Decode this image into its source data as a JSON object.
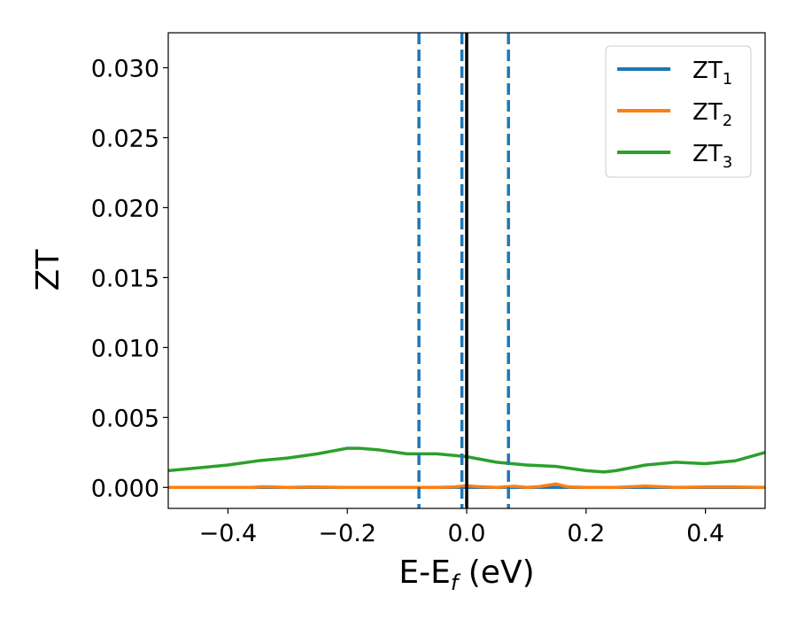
{
  "chart_data": {
    "type": "line",
    "xlabel": {
      "main": "E-E",
      "sub": "f",
      "suffix": " (eV)"
    },
    "ylabel": "ZT",
    "xlim": [
      -0.5,
      0.5
    ],
    "ylim": [
      -0.0015,
      0.0325
    ],
    "xticks": [
      -0.4,
      -0.2,
      0.0,
      0.2,
      0.4
    ],
    "xtick_labels": [
      "−0.4",
      "−0.2",
      "0.0",
      "0.2",
      "0.4"
    ],
    "yticks": [
      0.0,
      0.005,
      0.01,
      0.015,
      0.02,
      0.025,
      0.03
    ],
    "ytick_labels": [
      "0.000",
      "0.005",
      "0.010",
      "0.015",
      "0.020",
      "0.025",
      "0.030"
    ],
    "grid": false,
    "legend_position": "top-right",
    "series": [
      {
        "name": "ZT",
        "sub": "1",
        "color": "#1f77b4",
        "x": [
          -0.5,
          0.5
        ],
        "y": [
          0.0,
          0.0
        ]
      },
      {
        "name": "ZT",
        "sub": "2",
        "color": "#ff7f0e",
        "x": [
          -0.5,
          -0.45,
          -0.4,
          -0.36,
          -0.34,
          -0.3,
          -0.26,
          -0.2,
          -0.15,
          -0.1,
          -0.05,
          -0.02,
          0.0,
          0.02,
          0.05,
          0.08,
          0.1,
          0.12,
          0.15,
          0.17,
          0.2,
          0.25,
          0.3,
          0.35,
          0.4,
          0.45,
          0.5
        ],
        "y": [
          0.0,
          0.0,
          0.0,
          0.0,
          5e-05,
          0.0,
          3e-05,
          0.0,
          0.0,
          0.0,
          0.0,
          3e-05,
          0.00012,
          5e-05,
          0.0,
          8e-05,
          0.0,
          5e-05,
          0.00025,
          3e-05,
          0.0,
          0.0,
          0.0001,
          0.0,
          3e-05,
          3e-05,
          0.0
        ]
      },
      {
        "name": "ZT",
        "sub": "3",
        "color": "#2ca02c",
        "x": [
          -0.5,
          -0.45,
          -0.4,
          -0.35,
          -0.3,
          -0.25,
          -0.2,
          -0.18,
          -0.15,
          -0.1,
          -0.05,
          0.0,
          0.05,
          0.1,
          0.15,
          0.2,
          0.23,
          0.25,
          0.3,
          0.35,
          0.4,
          0.45,
          0.5
        ],
        "y": [
          0.0012,
          0.0014,
          0.0016,
          0.0019,
          0.0021,
          0.0024,
          0.0028,
          0.0028,
          0.0027,
          0.0024,
          0.0024,
          0.0022,
          0.0018,
          0.0016,
          0.0015,
          0.0012,
          0.0011,
          0.0012,
          0.0016,
          0.0018,
          0.0017,
          0.0019,
          0.0025
        ]
      }
    ],
    "vlines": [
      {
        "x": -0.08,
        "style": "dashed",
        "color": "#1f77b4"
      },
      {
        "x": -0.008,
        "style": "dashed",
        "color": "#1f77b4"
      },
      {
        "x": 0.07,
        "style": "dashed",
        "color": "#1f77b4"
      },
      {
        "x": 0.0,
        "style": "solid",
        "color": "#000000"
      }
    ]
  }
}
